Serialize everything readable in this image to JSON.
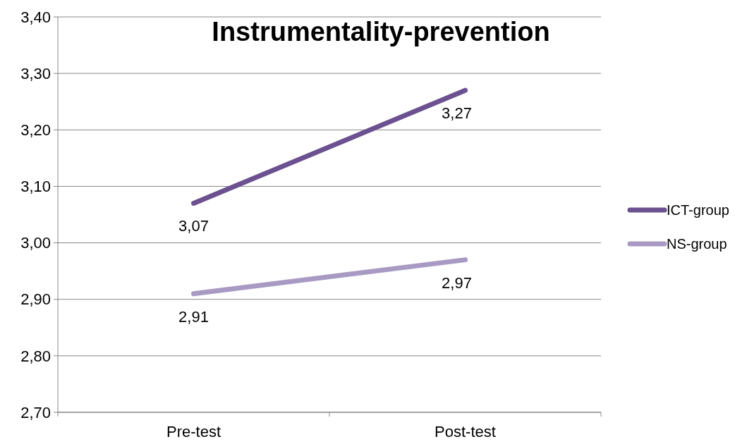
{
  "chart_data": {
    "type": "line",
    "title": "Instrumentality-prevention",
    "categories": [
      "Pre-test",
      "Post-test"
    ],
    "series": [
      {
        "name": "ICT-group",
        "color": "#6b5190",
        "values": [
          3.07,
          3.27
        ],
        "value_labels": [
          "3,07",
          "3,27"
        ]
      },
      {
        "name": "NS-group",
        "color": "#a99ac4",
        "values": [
          2.91,
          2.97
        ],
        "value_labels": [
          "2,91",
          "2,97"
        ]
      }
    ],
    "ylim": [
      2.7,
      3.4
    ],
    "yticks": [
      {
        "value": 2.7,
        "label": "2,70"
      },
      {
        "value": 2.8,
        "label": "2,80"
      },
      {
        "value": 2.9,
        "label": "2,90"
      },
      {
        "value": 3.0,
        "label": "3,00"
      },
      {
        "value": 3.1,
        "label": "3,10"
      },
      {
        "value": 3.2,
        "label": "3,20"
      },
      {
        "value": 3.3,
        "label": "3,30"
      },
      {
        "value": 3.4,
        "label": "3,40"
      }
    ],
    "grid": "y",
    "legend": "right",
    "marker": "none",
    "line_style": "solid"
  }
}
